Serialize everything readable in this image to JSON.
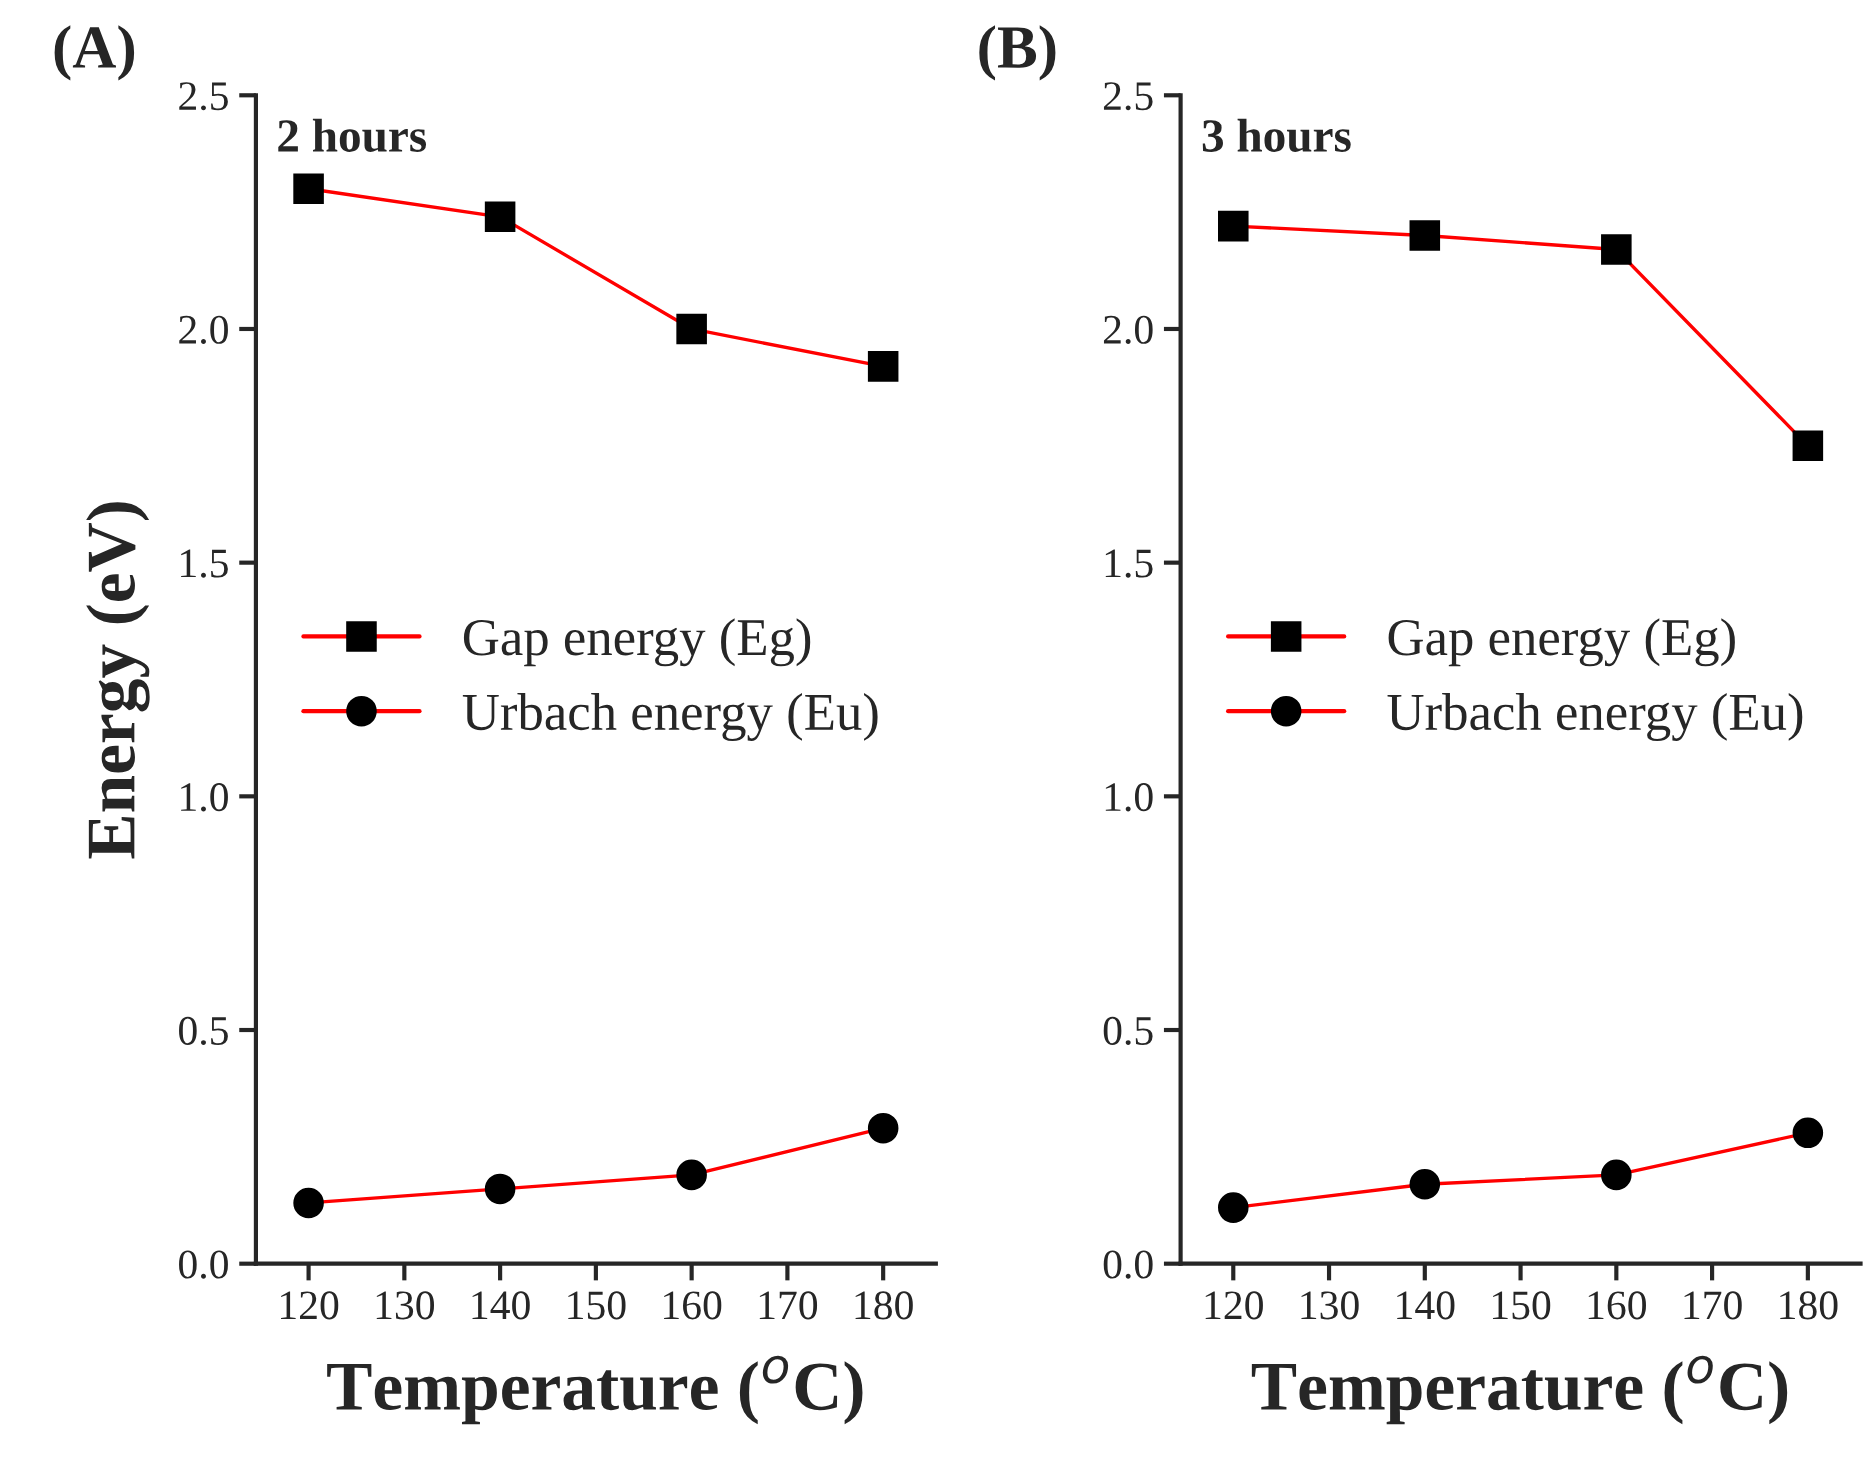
{
  "chart_data": [
    {
      "type": "line",
      "title": "2 hours",
      "xlabel": "Temperature ($^{o}$C)",
      "ylabel": "Energy (eV)",
      "annotations": [
        "(A)"
      ],
      "x": [
        120,
        140,
        160,
        180
      ],
      "xlim": [
        114.5,
        185.5
      ],
      "xticks": [
        120,
        130,
        140,
        150,
        160,
        170,
        180
      ],
      "ylim": [
        0,
        2.5
      ],
      "yticks": [
        {
          "value": 0,
          "label": "0.0"
        },
        0.5,
        {
          "value": 1,
          "label": "1.0"
        },
        1.5,
        {
          "value": 2,
          "label": "2.0"
        },
        2.5
      ],
      "legend": "left",
      "grid": false,
      "line_style": "solid",
      "series": [
        {
          "name": "Gap energy (Eg)",
          "color": "#ff0000",
          "marker": "square",
          "values": [
            2.3,
            2.24,
            2.0,
            1.92
          ]
        },
        {
          "name": "Urbach energy (Eu)",
          "color": "#ff0000",
          "marker": "circle",
          "values": [
            0.13,
            0.16,
            0.19,
            0.29
          ]
        }
      ]
    },
    {
      "type": "line",
      "title": "3 hours",
      "xlabel": "Temperature ($^{o}$C)",
      "annotations": [
        "(B)"
      ],
      "x": [
        120,
        140,
        160,
        180
      ],
      "xlim": [
        114.5,
        185.5
      ],
      "xticks": [
        120,
        130,
        140,
        150,
        160,
        170,
        180
      ],
      "ylim": [
        0,
        2.5
      ],
      "yticks": [
        {
          "value": 0,
          "label": "0.0"
        },
        0.5,
        {
          "value": 1,
          "label": "1.0"
        },
        1.5,
        {
          "value": 2,
          "label": "2.0"
        },
        2.5
      ],
      "legend": "left",
      "grid": false,
      "line_style": "solid",
      "series": [
        {
          "name": "Gap energy (Eg)",
          "color": "#ff0000",
          "marker": "square",
          "values": [
            2.22,
            2.2,
            2.17,
            1.75
          ]
        },
        {
          "name": "Urbach energy (Eu)",
          "color": "#ff0000",
          "marker": "circle",
          "values": [
            0.12,
            0.17,
            0.19,
            0.28
          ]
        }
      ]
    }
  ]
}
